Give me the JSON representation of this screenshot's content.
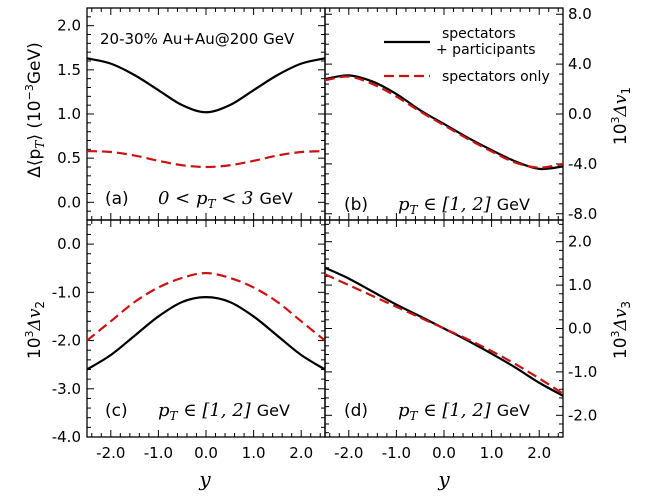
{
  "figure": {
    "annotation": "20-30% Au+Au@200 GeV",
    "colors": {
      "full": "#000000",
      "spectators": "#cc1111"
    },
    "legend": [
      {
        "label_line1": "spectators",
        "label_line2": "+ participants",
        "color": "#000000",
        "style": "solid"
      },
      {
        "label_line1": "spectators only",
        "color": "#cc1111",
        "style": "dashed"
      }
    ]
  },
  "chart_data": [
    {
      "id": "a",
      "type": "line",
      "panel_label": "(a)",
      "range_label_math": "0 < p",
      "range_label_sub": "T",
      "range_label_tail": " < 3",
      "unit": "GeV",
      "ylabel_main": "Δ⟨p",
      "ylabel_sub": "T",
      "ylabel_tail": "⟩ (10",
      "ylabel_exp": "−3",
      "ylabel_unit": "GeV)",
      "xlim": [
        -2.5,
        2.5
      ],
      "ylim": [
        -0.2,
        2.2
      ],
      "yticks": [
        "0.0",
        "0.5",
        "1.0",
        "1.5",
        "2.0"
      ],
      "x": [
        -2.5,
        -2.0,
        -1.5,
        -1.0,
        -0.5,
        0.0,
        0.5,
        1.0,
        1.5,
        2.0,
        2.5
      ],
      "series": [
        {
          "name": "spectators + participants",
          "values": [
            1.63,
            1.57,
            1.44,
            1.27,
            1.1,
            1.02,
            1.1,
            1.27,
            1.44,
            1.57,
            1.63
          ]
        },
        {
          "name": "spectators only",
          "values": [
            0.58,
            0.57,
            0.53,
            0.47,
            0.42,
            0.4,
            0.42,
            0.47,
            0.53,
            0.57,
            0.58
          ]
        }
      ]
    },
    {
      "id": "b",
      "type": "line",
      "panel_label": "(b)",
      "range_label_math": "p",
      "range_label_sub": "T",
      "range_label_tail": " ∈ [1, 2]",
      "unit": "GeV",
      "ylabel_main": "10",
      "ylabel_exp": "3",
      "ylabel_tail": "Δv",
      "ylabel_sub": "1",
      "xlim": [
        -2.5,
        2.5
      ],
      "ylim": [
        -8.5,
        8.5
      ],
      "yticks": [
        "8.0",
        "4.0",
        "0.0",
        "-4.0",
        "-8.0"
      ],
      "x": [
        -2.5,
        -2.0,
        -1.5,
        -1.0,
        -0.5,
        0.0,
        0.5,
        1.0,
        1.5,
        2.0,
        2.5
      ],
      "series": [
        {
          "name": "spectators + participants",
          "values": [
            2.8,
            3.1,
            2.6,
            1.6,
            0.3,
            -0.8,
            -1.9,
            -2.9,
            -3.8,
            -4.4,
            -4.2
          ]
        },
        {
          "name": "spectators only",
          "values": [
            2.7,
            3.0,
            2.4,
            1.4,
            0.2,
            -0.9,
            -2.0,
            -3.0,
            -3.9,
            -4.3,
            -4.0
          ]
        }
      ]
    },
    {
      "id": "c",
      "type": "line",
      "panel_label": "(c)",
      "range_label_math": "p",
      "range_label_sub": "T",
      "range_label_tail": " ∈ [1, 2]",
      "unit": "GeV",
      "ylabel_main": "10",
      "ylabel_exp": "3",
      "ylabel_tail": "Δv",
      "ylabel_sub": "2",
      "xlim": [
        -2.5,
        2.5
      ],
      "xlabel": "y",
      "ylim": [
        -4.0,
        0.5
      ],
      "yticks": [
        "0.0",
        "-1.0",
        "-2.0",
        "-3.0",
        "-4.0"
      ],
      "xticks": [
        "-2.0",
        "-1.0",
        "0.0",
        "1.0",
        "2.0"
      ],
      "x": [
        -2.5,
        -2.0,
        -1.5,
        -1.0,
        -0.5,
        0.0,
        0.5,
        1.0,
        1.5,
        2.0,
        2.5
      ],
      "series": [
        {
          "name": "spectators + participants",
          "values": [
            -2.6,
            -2.3,
            -1.9,
            -1.5,
            -1.2,
            -1.1,
            -1.2,
            -1.5,
            -1.9,
            -2.3,
            -2.6
          ]
        },
        {
          "name": "spectators only",
          "values": [
            -2.0,
            -1.6,
            -1.2,
            -0.9,
            -0.7,
            -0.6,
            -0.7,
            -0.9,
            -1.2,
            -1.6,
            -2.0
          ]
        }
      ]
    },
    {
      "id": "d",
      "type": "line",
      "panel_label": "(d)",
      "range_label_math": "p",
      "range_label_sub": "T",
      "range_label_tail": " ∈ [1, 2]",
      "unit": "GeV",
      "ylabel_main": "10",
      "ylabel_exp": "3",
      "ylabel_tail": "Δv",
      "ylabel_sub": "3",
      "xlim": [
        -2.5,
        2.5
      ],
      "xlabel": "y",
      "ylim": [
        -2.5,
        2.5
      ],
      "yticks": [
        "2.0",
        "1.0",
        "0.0",
        "-1.0",
        "-2.0"
      ],
      "xticks": [
        "-2.0",
        "-1.0",
        "0.0",
        "1.0",
        "2.0"
      ],
      "x": [
        -2.5,
        -2.0,
        -1.5,
        -1.0,
        -0.5,
        0.0,
        0.5,
        1.0,
        1.5,
        2.0,
        2.5
      ],
      "series": [
        {
          "name": "spectators + participants",
          "values": [
            1.4,
            1.15,
            0.85,
            0.55,
            0.28,
            0.0,
            -0.28,
            -0.58,
            -0.9,
            -1.25,
            -1.55
          ]
        },
        {
          "name": "spectators only",
          "values": [
            1.25,
            1.0,
            0.75,
            0.5,
            0.25,
            0.0,
            -0.25,
            -0.52,
            -0.82,
            -1.15,
            -1.5
          ]
        }
      ]
    }
  ]
}
